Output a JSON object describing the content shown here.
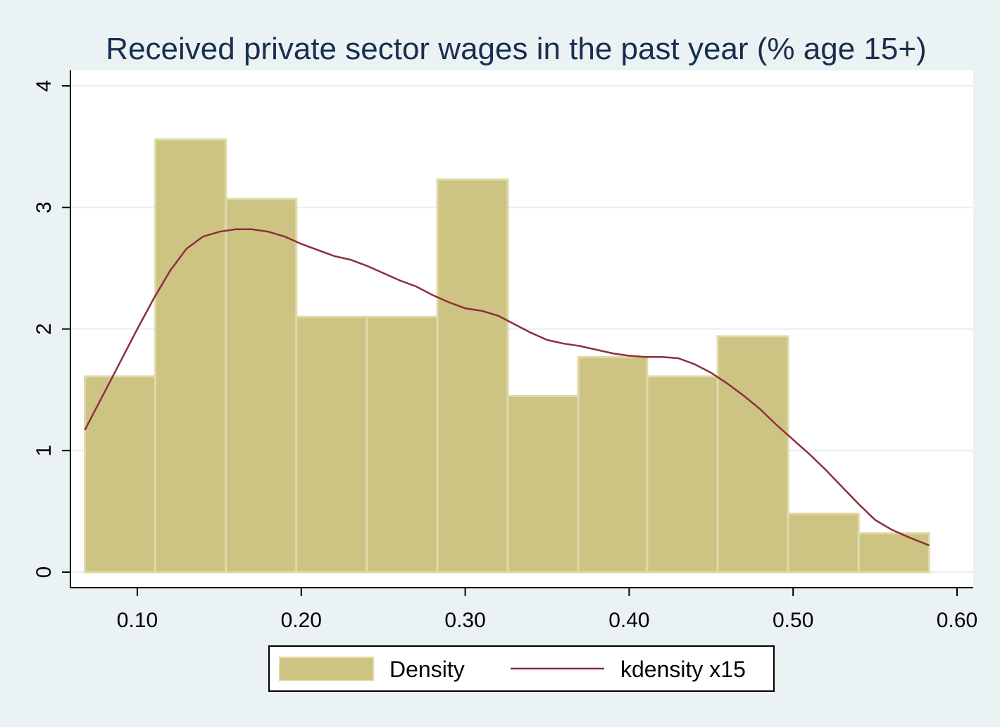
{
  "chart_data": {
    "type": "bar",
    "title": "Received private sector wages in the past year (% age 15+)",
    "xlabel": "",
    "ylabel": "",
    "xlim": [
      0.06,
      0.61
    ],
    "ylim": [
      0,
      4
    ],
    "xticks": [
      "0.10",
      "0.20",
      "0.30",
      "0.40",
      "0.50",
      "0.60"
    ],
    "yticks": [
      "0",
      "1",
      "2",
      "3",
      "4"
    ],
    "grid": true,
    "legend_position": "bottom",
    "legend": [
      "Density",
      "kdensity x15"
    ],
    "series": [
      {
        "name": "Density",
        "type": "histogram",
        "color": "#cdc484",
        "bins": [
          {
            "x0": 0.068,
            "x1": 0.111,
            "value": 1.61
          },
          {
            "x0": 0.111,
            "x1": 0.154,
            "value": 3.56
          },
          {
            "x0": 0.154,
            "x1": 0.197,
            "value": 3.07
          },
          {
            "x0": 0.197,
            "x1": 0.24,
            "value": 2.1
          },
          {
            "x0": 0.24,
            "x1": 0.283,
            "value": 2.1
          },
          {
            "x0": 0.283,
            "x1": 0.326,
            "value": 3.23
          },
          {
            "x0": 0.326,
            "x1": 0.369,
            "value": 1.45
          },
          {
            "x0": 0.369,
            "x1": 0.411,
            "value": 1.77
          },
          {
            "x0": 0.411,
            "x1": 0.454,
            "value": 1.61
          },
          {
            "x0": 0.454,
            "x1": 0.497,
            "value": 1.94
          },
          {
            "x0": 0.497,
            "x1": 0.54,
            "value": 0.48
          },
          {
            "x0": 0.54,
            "x1": 0.583,
            "value": 0.32
          }
        ]
      },
      {
        "name": "kdensity x15",
        "type": "line",
        "color": "#8c2f3b",
        "x": [
          0.068,
          0.08,
          0.09,
          0.1,
          0.11,
          0.12,
          0.13,
          0.14,
          0.15,
          0.16,
          0.17,
          0.18,
          0.19,
          0.2,
          0.21,
          0.22,
          0.23,
          0.24,
          0.25,
          0.26,
          0.27,
          0.28,
          0.29,
          0.3,
          0.31,
          0.32,
          0.33,
          0.34,
          0.35,
          0.36,
          0.37,
          0.38,
          0.39,
          0.4,
          0.41,
          0.42,
          0.43,
          0.44,
          0.45,
          0.46,
          0.47,
          0.48,
          0.49,
          0.5,
          0.51,
          0.52,
          0.53,
          0.54,
          0.55,
          0.56,
          0.57,
          0.583
        ],
        "y": [
          1.17,
          1.48,
          1.74,
          2.0,
          2.25,
          2.48,
          2.66,
          2.76,
          2.8,
          2.82,
          2.82,
          2.8,
          2.76,
          2.7,
          2.65,
          2.6,
          2.57,
          2.52,
          2.46,
          2.4,
          2.35,
          2.28,
          2.22,
          2.17,
          2.15,
          2.11,
          2.04,
          1.97,
          1.91,
          1.88,
          1.86,
          1.83,
          1.8,
          1.78,
          1.77,
          1.77,
          1.76,
          1.71,
          1.64,
          1.55,
          1.45,
          1.34,
          1.21,
          1.09,
          0.97,
          0.84,
          0.7,
          0.56,
          0.43,
          0.35,
          0.29,
          0.22
        ]
      }
    ]
  }
}
